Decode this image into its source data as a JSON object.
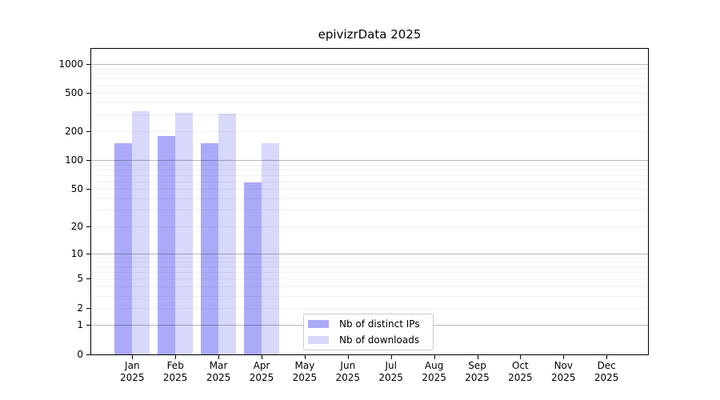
{
  "chart_data": {
    "type": "bar",
    "title": "epivizrData 2025",
    "categories": [
      "Jan 2025",
      "Feb 2025",
      "Mar 2025",
      "Apr 2025",
      "May 2025",
      "Jun 2025",
      "Jul 2025",
      "Aug 2025",
      "Sep 2025",
      "Oct 2025",
      "Nov 2025",
      "Dec 2025"
    ],
    "x_axis": {
      "months": [
        "Jan",
        "Feb",
        "Mar",
        "Apr",
        "May",
        "Jun",
        "Jul",
        "Aug",
        "Sep",
        "Oct",
        "Nov",
        "Dec"
      ],
      "year": "2025"
    },
    "series": [
      {
        "name": "Nb of distinct IPs",
        "color": "#aaaaf9",
        "values": [
          150,
          180,
          150,
          59,
          null,
          null,
          null,
          null,
          null,
          null,
          null,
          null
        ]
      },
      {
        "name": "Nb of downloads",
        "color": "#d8d8fa",
        "values": [
          325,
          310,
          305,
          150,
          null,
          null,
          null,
          null,
          null,
          null,
          null,
          null
        ]
      }
    ],
    "y_ticks": [
      0,
      1,
      2,
      5,
      10,
      20,
      50,
      100,
      200,
      500,
      1000
    ],
    "y_scale": "log1p",
    "ylim": [
      0,
      1500
    ],
    "grid": "horizontal",
    "legend_position": "lower center"
  }
}
